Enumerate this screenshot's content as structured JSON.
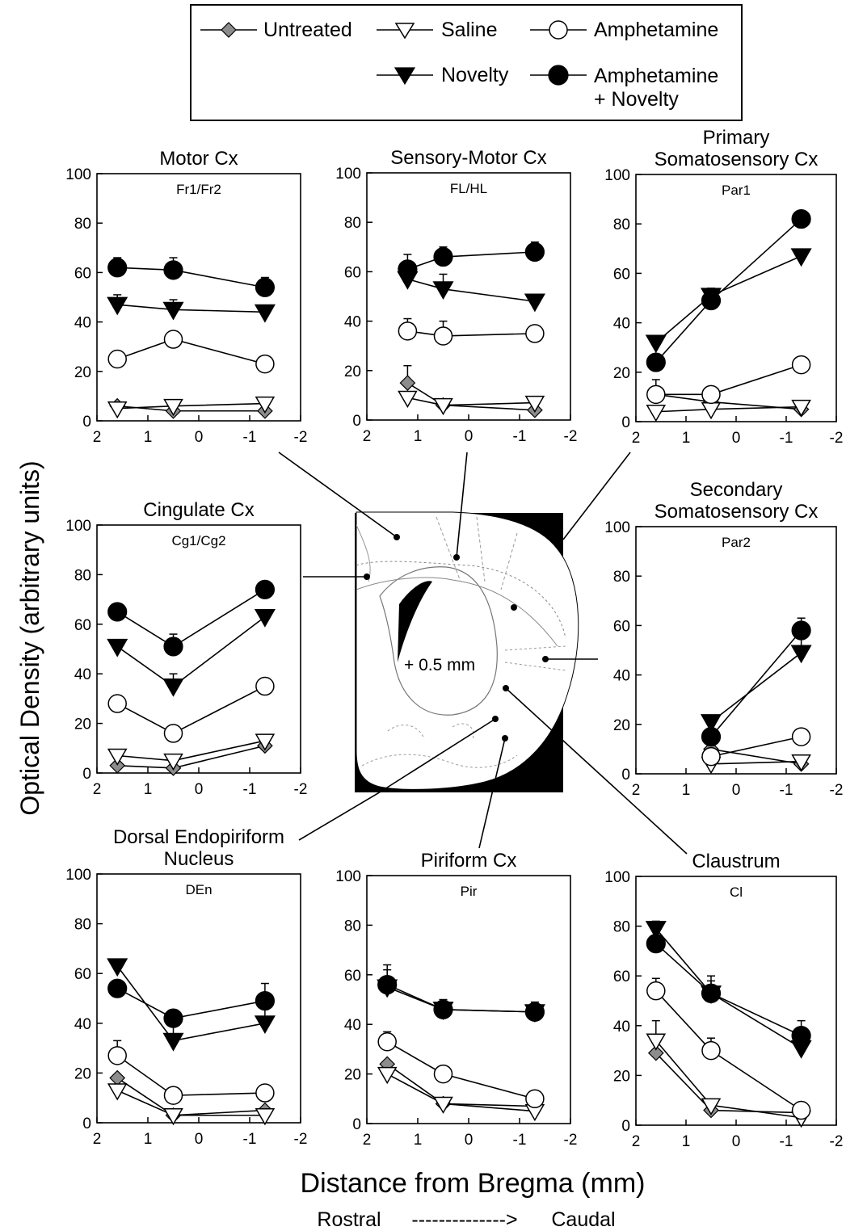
{
  "legend": {
    "untreated": "Untreated",
    "saline": "Saline",
    "amphetamine": "Amphetamine",
    "novelty": "Novelty",
    "amph_novelty_1": "Amphetamine",
    "amph_novelty_2": "+ Novelty"
  },
  "y_axis_label": "Optical Density (arbitrary units)",
  "x_axis_label": "Distance from Bregma (mm)",
  "direction_rostral": "Rostral",
  "direction_arrow": "-------------->",
  "direction_caudal": "Caudal",
  "section_label": "+ 0.5 mm",
  "colors": {
    "untreated": "#8c8c8c",
    "marker": "#000000",
    "background": "#ffffff"
  },
  "chart_data": [
    {
      "type": "line",
      "title": "Motor Cx",
      "subtitle": "Fr1/Fr2",
      "x": [
        1.6,
        0.5,
        -1.3
      ],
      "xlim": [
        2,
        -2
      ],
      "ylim": [
        0,
        100
      ],
      "xticks": [
        "2",
        "1",
        "0",
        "-1",
        "-2"
      ],
      "yticks": [
        "0",
        "20",
        "40",
        "60",
        "80",
        "100"
      ],
      "series": [
        {
          "name": "Untreated",
          "values": [
            6,
            4,
            4
          ],
          "err": [
            0,
            0,
            0
          ]
        },
        {
          "name": "Saline",
          "values": [
            5,
            6,
            7
          ],
          "err": [
            0,
            0,
            0
          ]
        },
        {
          "name": "Amphetamine",
          "values": [
            25,
            33,
            23
          ],
          "err": [
            0,
            3,
            0
          ]
        },
        {
          "name": "Novelty",
          "values": [
            47,
            45,
            44
          ],
          "err": [
            4,
            4,
            0
          ]
        },
        {
          "name": "Amphetamine + Novelty",
          "values": [
            62,
            61,
            54
          ],
          "err": [
            4,
            5,
            4
          ]
        }
      ]
    },
    {
      "type": "line",
      "title": "Sensory-Motor Cx",
      "subtitle": "FL/HL",
      "x": [
        1.2,
        0.5,
        -1.3
      ],
      "xlim": [
        2,
        -2
      ],
      "ylim": [
        0,
        100
      ],
      "xticks": [
        "2",
        "1",
        "0",
        "-1",
        "-2"
      ],
      "yticks": [
        "0",
        "20",
        "40",
        "60",
        "80",
        "100"
      ],
      "series": [
        {
          "name": "Untreated",
          "values": [
            15,
            6,
            4
          ],
          "err": [
            7,
            0,
            0
          ]
        },
        {
          "name": "Saline",
          "values": [
            9,
            6,
            7
          ],
          "err": [
            0,
            0,
            0
          ]
        },
        {
          "name": "Amphetamine",
          "values": [
            36,
            34,
            35
          ],
          "err": [
            5,
            6,
            0
          ]
        },
        {
          "name": "Novelty",
          "values": [
            57,
            53,
            48
          ],
          "err": [
            4,
            6,
            0
          ]
        },
        {
          "name": "Amphetamine + Novelty",
          "values": [
            61,
            66,
            68
          ],
          "err": [
            6,
            4,
            4
          ]
        }
      ]
    },
    {
      "type": "line",
      "title": "Primary",
      "title2": "Somatosensory Cx",
      "subtitle": "Par1",
      "x": [
        1.6,
        0.5,
        -1.3
      ],
      "xlim": [
        2,
        -2
      ],
      "ylim": [
        0,
        100
      ],
      "xticks": [
        "2",
        "1",
        "0",
        "-1",
        "-2"
      ],
      "yticks": [
        "0",
        "20",
        "40",
        "60",
        "80",
        "100"
      ],
      "series": [
        {
          "name": "Untreated",
          "values": [
            11,
            8,
            5
          ],
          "err": [
            6,
            0,
            0
          ]
        },
        {
          "name": "Saline",
          "values": [
            4,
            5,
            6
          ],
          "err": [
            0,
            0,
            0
          ]
        },
        {
          "name": "Amphetamine",
          "values": [
            11,
            11,
            23
          ],
          "err": [
            0,
            0,
            0
          ]
        },
        {
          "name": "Novelty",
          "values": [
            32,
            51,
            67
          ],
          "err": [
            0,
            0,
            0
          ]
        },
        {
          "name": "Amphetamine + Novelty",
          "values": [
            24,
            49,
            82
          ],
          "err": [
            0,
            5,
            0
          ]
        }
      ]
    },
    {
      "type": "line",
      "title": "Cingulate Cx",
      "subtitle": "Cg1/Cg2",
      "x": [
        1.6,
        0.5,
        -1.3
      ],
      "xlim": [
        2,
        -2
      ],
      "ylim": [
        0,
        100
      ],
      "xticks": [
        "2",
        "1",
        "0",
        "-1",
        "-2"
      ],
      "yticks": [
        "0",
        "20",
        "40",
        "60",
        "80",
        "100"
      ],
      "series": [
        {
          "name": "Untreated",
          "values": [
            3,
            2,
            11
          ],
          "err": [
            0,
            0,
            0
          ]
        },
        {
          "name": "Saline",
          "values": [
            7,
            5,
            13
          ],
          "err": [
            0,
            0,
            0
          ]
        },
        {
          "name": "Amphetamine",
          "values": [
            28,
            16,
            35
          ],
          "err": [
            0,
            0,
            0
          ]
        },
        {
          "name": "Novelty",
          "values": [
            51,
            35,
            63
          ],
          "err": [
            0,
            5,
            0
          ]
        },
        {
          "name": "Amphetamine + Novelty",
          "values": [
            65,
            51,
            74
          ],
          "err": [
            0,
            5,
            0
          ]
        }
      ]
    },
    {
      "type": "line",
      "title": "Secondary",
      "title2": "Somatosensory Cx",
      "subtitle": "Par2",
      "x": [
        0.5,
        -1.3
      ],
      "xlim": [
        2,
        -2
      ],
      "ylim": [
        0,
        100
      ],
      "xticks": [
        "2",
        "1",
        "0",
        "-1",
        "-2"
      ],
      "yticks": [
        "0",
        "20",
        "40",
        "60",
        "80",
        "100"
      ],
      "series": [
        {
          "name": "Untreated",
          "values": [
            10,
            4
          ],
          "err": [
            0,
            0
          ]
        },
        {
          "name": "Saline",
          "values": [
            4,
            5
          ],
          "err": [
            0,
            0
          ]
        },
        {
          "name": "Amphetamine",
          "values": [
            7,
            15
          ],
          "err": [
            0,
            0
          ]
        },
        {
          "name": "Novelty",
          "values": [
            21,
            49
          ],
          "err": [
            0,
            6
          ]
        },
        {
          "name": "Amphetamine + Novelty",
          "values": [
            15,
            58
          ],
          "err": [
            0,
            5
          ]
        }
      ]
    },
    {
      "type": "line",
      "title": "Dorsal Endopiriform",
      "title2": "Nucleus",
      "subtitle": "DEn",
      "x": [
        1.6,
        0.5,
        -1.3
      ],
      "xlim": [
        2,
        -2
      ],
      "ylim": [
        0,
        100
      ],
      "xticks": [
        "2",
        "1",
        "0",
        "-1",
        "-2"
      ],
      "yticks": [
        "0",
        "20",
        "40",
        "60",
        "80",
        "100"
      ],
      "series": [
        {
          "name": "Untreated",
          "values": [
            18,
            3,
            5
          ],
          "err": [
            0,
            0,
            0
          ]
        },
        {
          "name": "Saline",
          "values": [
            13,
            3,
            3
          ],
          "err": [
            0,
            0,
            0
          ]
        },
        {
          "name": "Amphetamine",
          "values": [
            27,
            11,
            12
          ],
          "err": [
            6,
            0,
            0
          ]
        },
        {
          "name": "Novelty",
          "values": [
            63,
            33,
            40
          ],
          "err": [
            0,
            6,
            6
          ]
        },
        {
          "name": "Amphetamine + Novelty",
          "values": [
            54,
            42,
            49
          ],
          "err": [
            0,
            0,
            7
          ]
        }
      ]
    },
    {
      "type": "line",
      "title": "Piriform Cx",
      "subtitle": "Pir",
      "x": [
        1.6,
        0.5,
        -1.3
      ],
      "xlim": [
        2,
        -2
      ],
      "ylim": [
        0,
        100
      ],
      "xticks": [
        "2",
        "1",
        "0",
        "-1",
        "-2"
      ],
      "yticks": [
        "0",
        "20",
        "40",
        "60",
        "80",
        "100"
      ],
      "series": [
        {
          "name": "Untreated",
          "values": [
            24,
            8,
            7
          ],
          "err": [
            0,
            0,
            0
          ]
        },
        {
          "name": "Saline",
          "values": [
            20,
            8,
            5
          ],
          "err": [
            0,
            0,
            0
          ]
        },
        {
          "name": "Amphetamine",
          "values": [
            33,
            20,
            10
          ],
          "err": [
            4,
            0,
            0
          ]
        },
        {
          "name": "Novelty",
          "values": [
            55,
            46,
            45
          ],
          "err": [
            9,
            4,
            4
          ]
        },
        {
          "name": "Amphetamine + Novelty",
          "values": [
            56,
            46,
            45
          ],
          "err": [
            6,
            0,
            0
          ]
        }
      ]
    },
    {
      "type": "line",
      "title": "Claustrum",
      "subtitle": "Cl",
      "x": [
        1.6,
        0.5,
        -1.3
      ],
      "xlim": [
        2,
        -2
      ],
      "ylim": [
        0,
        100
      ],
      "xticks": [
        "2",
        "1",
        "0",
        "-1",
        "-2"
      ],
      "yticks": [
        "0",
        "20",
        "40",
        "60",
        "80",
        "100"
      ],
      "series": [
        {
          "name": "Untreated",
          "values": [
            29,
            6,
            5
          ],
          "err": [
            0,
            0,
            0
          ]
        },
        {
          "name": "Saline",
          "values": [
            34,
            8,
            3
          ],
          "err": [
            8,
            0,
            0
          ]
        },
        {
          "name": "Amphetamine",
          "values": [
            54,
            30,
            6
          ],
          "err": [
            5,
            5,
            0
          ]
        },
        {
          "name": "Novelty",
          "values": [
            79,
            53,
            31
          ],
          "err": [
            0,
            7,
            7
          ]
        },
        {
          "name": "Amphetamine + Novelty",
          "values": [
            73,
            53,
            36
          ],
          "err": [
            9,
            5,
            6
          ]
        }
      ]
    }
  ]
}
